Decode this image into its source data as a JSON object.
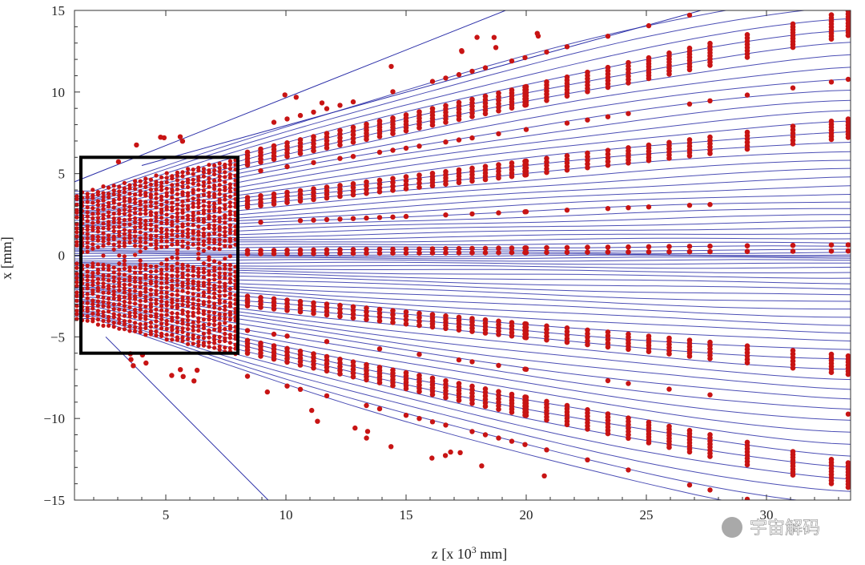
{
  "chart_data": {
    "type": "scatter",
    "title": "",
    "xlabel": "z [x 10",
    "xlabel_sup": "3",
    "xlabel_unit": " mm]",
    "ylabel": "x [mm]",
    "xlim": [
      1.2,
      33.5
    ],
    "ylim": [
      -15,
      15
    ],
    "xticks": [
      "5",
      "10",
      "15",
      "20",
      "25",
      "30"
    ],
    "yticks": [
      "15",
      "10",
      "5",
      "0",
      "−5",
      "−10",
      "−15"
    ],
    "highlight_box": {
      "x0": 1.2,
      "x1": 8.0,
      "y0": -6.0,
      "y1": 6.0
    },
    "series": [
      {
        "name": "trajectories",
        "style": "line",
        "color": "#2b2fa8",
        "description_z_end": 33.5,
        "spread_top": 15,
        "spread_bottom": -15
      },
      {
        "name": "data points",
        "style": "marker",
        "color": "#c81414",
        "groups": [
          {
            "label": "upper branch",
            "y_at_z30": 13.5
          },
          {
            "label": "upper inner",
            "y_at_z30": 7.5
          },
          {
            "label": "center",
            "y_at_z30": 1.0
          },
          {
            "label": "lower inner",
            "y_at_z30": -5.5
          },
          {
            "label": "lower branch",
            "y_at_z30": -12.0
          }
        ]
      }
    ],
    "watermark": "宇宙解码"
  }
}
